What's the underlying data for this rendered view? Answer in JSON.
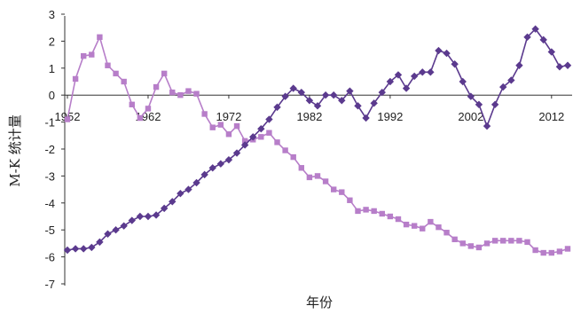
{
  "chart_data": {
    "type": "line",
    "title": "",
    "xlabel": "年份",
    "ylabel": "M-K 统计量",
    "xlim": [
      1952,
      2014
    ],
    "ylim": [
      -7,
      3
    ],
    "x_ticks": [
      "1952",
      "1962",
      "1972",
      "1982",
      "1992",
      "2002",
      "2012"
    ],
    "y_ticks": [
      "3",
      "2",
      "1",
      "0",
      "-1",
      "-2",
      "-3",
      "-4",
      "-5",
      "-6",
      "-7"
    ],
    "grid": false,
    "legend": "none",
    "series": [
      {
        "marker": "square",
        "color": "#b77ec9",
        "x": [
          1952,
          1953,
          1954,
          1955,
          1956,
          1957,
          1958,
          1959,
          1960,
          1961,
          1962,
          1963,
          1964,
          1965,
          1966,
          1967,
          1968,
          1969,
          1970,
          1971,
          1972,
          1973,
          1974,
          1975,
          1976,
          1977,
          1978,
          1979,
          1980,
          1981,
          1982,
          1983,
          1984,
          1985,
          1986,
          1987,
          1988,
          1989,
          1990,
          1991,
          1992,
          1993,
          1994,
          1995,
          1996,
          1997,
          1998,
          1999,
          2000,
          2001,
          2002,
          2003,
          2004,
          2005,
          2006,
          2007,
          2008,
          2009,
          2010,
          2011,
          2012,
          2013,
          2014
        ],
        "y": [
          -0.9,
          0.6,
          1.45,
          1.5,
          2.15,
          1.1,
          0.8,
          0.5,
          -0.35,
          -0.85,
          -0.5,
          0.3,
          0.8,
          0.1,
          0.0,
          0.15,
          0.05,
          -0.7,
          -1.2,
          -1.1,
          -1.45,
          -1.15,
          -1.7,
          -1.65,
          -1.55,
          -1.4,
          -1.75,
          -2.05,
          -2.3,
          -2.7,
          -3.05,
          -3.0,
          -3.2,
          -3.5,
          -3.6,
          -3.9,
          -4.3,
          -4.25,
          -4.3,
          -4.4,
          -4.5,
          -4.6,
          -4.8,
          -4.85,
          -4.95,
          -4.7,
          -4.9,
          -5.1,
          -5.35,
          -5.5,
          -5.6,
          -5.65,
          -5.5,
          -5.4,
          -5.4,
          -5.4,
          -5.4,
          -5.45,
          -5.75,
          -5.85,
          -5.85,
          -5.8,
          -5.7
        ]
      },
      {
        "marker": "diamond",
        "color": "#5b3a8e",
        "x": [
          1952,
          1953,
          1954,
          1955,
          1956,
          1957,
          1958,
          1959,
          1960,
          1961,
          1962,
          1963,
          1964,
          1965,
          1966,
          1967,
          1968,
          1969,
          1970,
          1971,
          1972,
          1973,
          1974,
          1975,
          1976,
          1977,
          1978,
          1979,
          1980,
          1981,
          1982,
          1983,
          1984,
          1985,
          1986,
          1987,
          1988,
          1989,
          1990,
          1991,
          1992,
          1993,
          1994,
          1995,
          1996,
          1997,
          1998,
          1999,
          2000,
          2001,
          2002,
          2003,
          2004,
          2005,
          2006,
          2007,
          2008,
          2009,
          2010,
          2011,
          2012,
          2013,
          2014
        ],
        "y": [
          -5.75,
          -5.7,
          -5.7,
          -5.65,
          -5.45,
          -5.15,
          -5.0,
          -4.85,
          -4.65,
          -4.5,
          -4.5,
          -4.45,
          -4.2,
          -3.95,
          -3.65,
          -3.5,
          -3.25,
          -2.95,
          -2.7,
          -2.55,
          -2.4,
          -2.15,
          -1.85,
          -1.55,
          -1.25,
          -0.9,
          -0.45,
          -0.05,
          0.25,
          0.1,
          -0.2,
          -0.4,
          0.0,
          0.0,
          -0.2,
          0.15,
          -0.4,
          -0.85,
          -0.3,
          0.1,
          0.5,
          0.75,
          0.25,
          0.7,
          0.85,
          0.85,
          1.65,
          1.55,
          1.15,
          0.5,
          -0.05,
          -0.35,
          -1.15,
          -0.35,
          0.3,
          0.55,
          1.1,
          2.15,
          2.45,
          2.05,
          1.6,
          1.05,
          1.1
        ]
      }
    ]
  }
}
